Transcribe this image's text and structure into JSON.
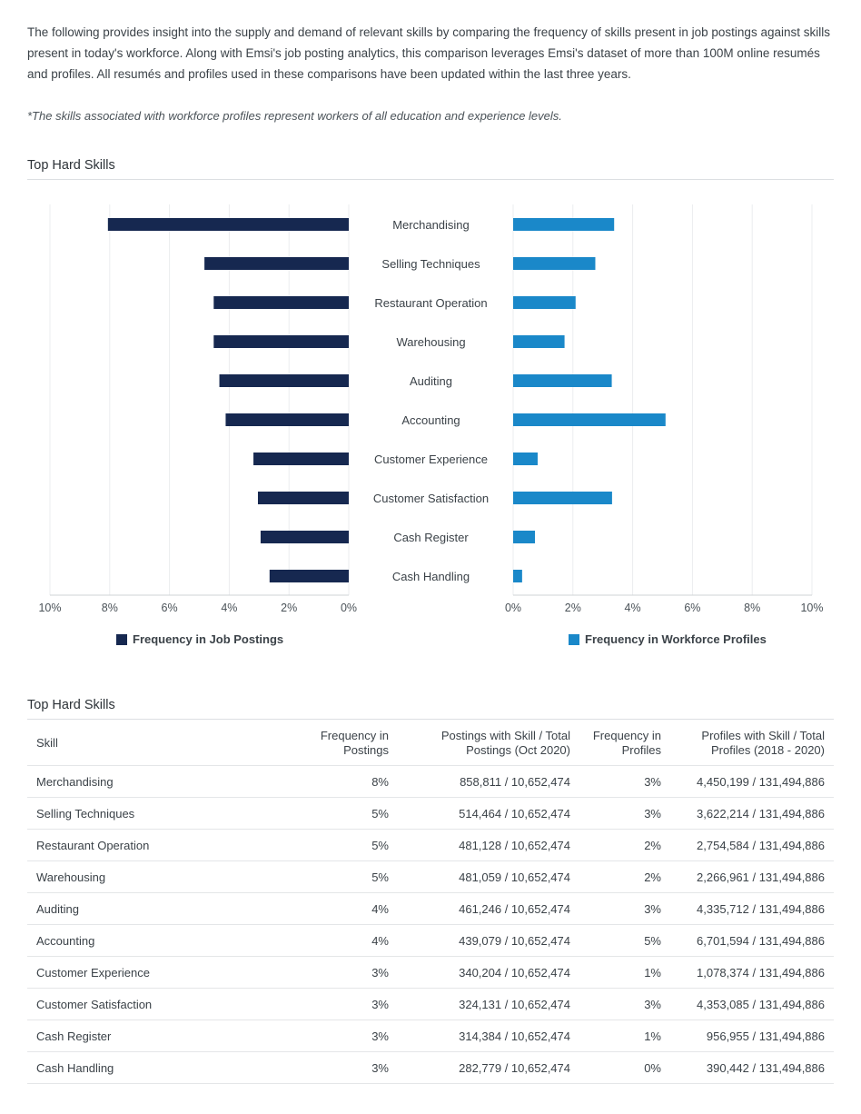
{
  "intro": {
    "paragraph": "The following provides insight into the supply and demand of relevant skills by comparing the frequency of skills present in job postings against skills present in today's workforce. Along with Emsi's job posting analytics, this comparison leverages Emsi's dataset of more than 100M online resumés and profiles. All resumés and profiles used in these comparisons have been updated within the last three years.",
    "note": "*The skills associated with workforce profiles represent workers of all education and experience levels."
  },
  "chart_section": {
    "title": "Top Hard Skills"
  },
  "table_section": {
    "title": "Top Hard Skills"
  },
  "colors": {
    "postings": "#162850",
    "profiles": "#1a88c9",
    "grid": "#ebedef"
  },
  "chart_data": {
    "type": "bar",
    "orientation": "horizontal-butterfly",
    "categories": [
      "Merchandising",
      "Selling Techniques",
      "Restaurant Operation",
      "Warehousing",
      "Auditing",
      "Accounting",
      "Customer Experience",
      "Customer Satisfaction",
      "Cash Register",
      "Cash Handling"
    ],
    "series": [
      {
        "name": "Frequency in Job Postings",
        "values": [
          8.06,
          4.83,
          4.52,
          4.52,
          4.33,
          4.12,
          3.19,
          3.04,
          2.95,
          2.65
        ]
      },
      {
        "name": "Frequency in Workforce Profiles",
        "values": [
          3.38,
          2.75,
          2.09,
          1.72,
          3.3,
          5.1,
          0.82,
          3.31,
          0.73,
          0.3
        ]
      }
    ],
    "xlim": [
      0,
      10
    ],
    "left_ticks": [
      "10%",
      "8%",
      "6%",
      "4%",
      "2%",
      "0%"
    ],
    "right_ticks": [
      "0%",
      "2%",
      "4%",
      "6%",
      "8%",
      "10%"
    ],
    "grid": true,
    "legend_position": "bottom"
  },
  "table": {
    "headers": [
      "Skill",
      "Frequency in Postings",
      "Postings with Skill / Total Postings (Oct 2020)",
      "Frequency in Profiles",
      "Profiles with Skill / Total Profiles (2018 - 2020)"
    ],
    "rows": [
      [
        "Merchandising",
        "8%",
        "858,811 / 10,652,474",
        "3%",
        "4,450,199 / 131,494,886"
      ],
      [
        "Selling Techniques",
        "5%",
        "514,464 / 10,652,474",
        "3%",
        "3,622,214 / 131,494,886"
      ],
      [
        "Restaurant Operation",
        "5%",
        "481,128 / 10,652,474",
        "2%",
        "2,754,584 / 131,494,886"
      ],
      [
        "Warehousing",
        "5%",
        "481,059 / 10,652,474",
        "2%",
        "2,266,961 / 131,494,886"
      ],
      [
        "Auditing",
        "4%",
        "461,246 / 10,652,474",
        "3%",
        "4,335,712 / 131,494,886"
      ],
      [
        "Accounting",
        "4%",
        "439,079 / 10,652,474",
        "5%",
        "6,701,594 / 131,494,886"
      ],
      [
        "Customer Experience",
        "3%",
        "340,204 / 10,652,474",
        "1%",
        "1,078,374 / 131,494,886"
      ],
      [
        "Customer Satisfaction",
        "3%",
        "324,131 / 10,652,474",
        "3%",
        "4,353,085 / 131,494,886"
      ],
      [
        "Cash Register",
        "3%",
        "314,384 / 10,652,474",
        "1%",
        "956,955 / 131,494,886"
      ],
      [
        "Cash Handling",
        "3%",
        "282,779 / 10,652,474",
        "0%",
        "390,442 / 131,494,886"
      ]
    ]
  }
}
